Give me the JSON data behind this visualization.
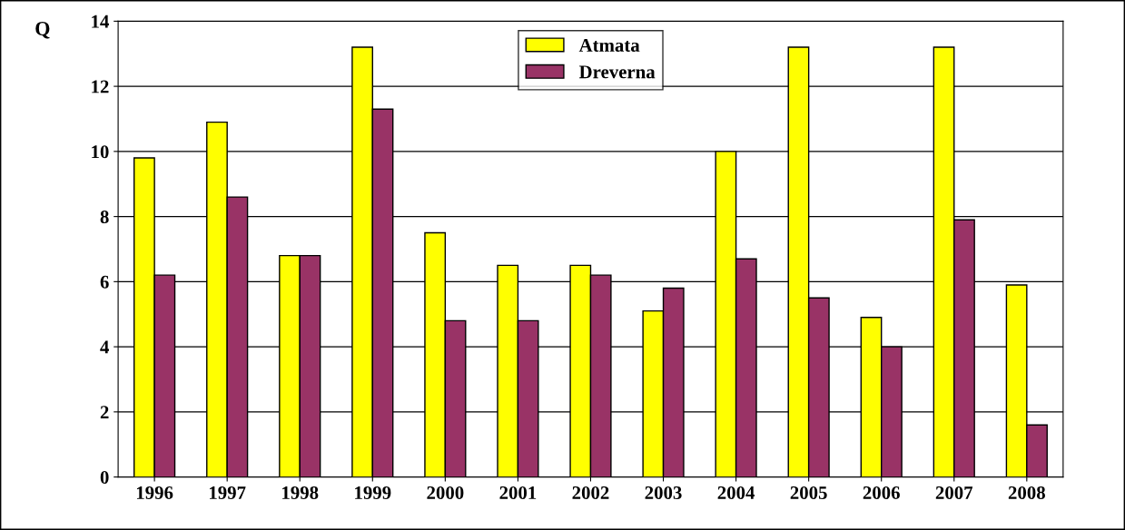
{
  "chart_data": {
    "type": "bar",
    "ylabel": "Q",
    "categories": [
      "1996",
      "1997",
      "1998",
      "1999",
      "2000",
      "2001",
      "2002",
      "2003",
      "2004",
      "2005",
      "2006",
      "2007",
      "2008"
    ],
    "series": [
      {
        "name": "Atmata",
        "color": "#ffff00",
        "values": [
          9.8,
          10.9,
          6.8,
          13.2,
          7.5,
          6.5,
          6.5,
          5.1,
          10.0,
          13.2,
          4.9,
          13.2,
          5.9
        ]
      },
      {
        "name": "Dreverna",
        "color": "#993366",
        "values": [
          6.2,
          8.6,
          6.8,
          11.3,
          4.8,
          4.8,
          6.2,
          5.8,
          6.7,
          5.5,
          4.0,
          7.9,
          1.6
        ]
      }
    ],
    "ylim": [
      0,
      14
    ],
    "yticks": [
      0,
      2,
      4,
      6,
      8,
      10,
      12,
      14
    ],
    "grid": "y",
    "legend": "top"
  }
}
